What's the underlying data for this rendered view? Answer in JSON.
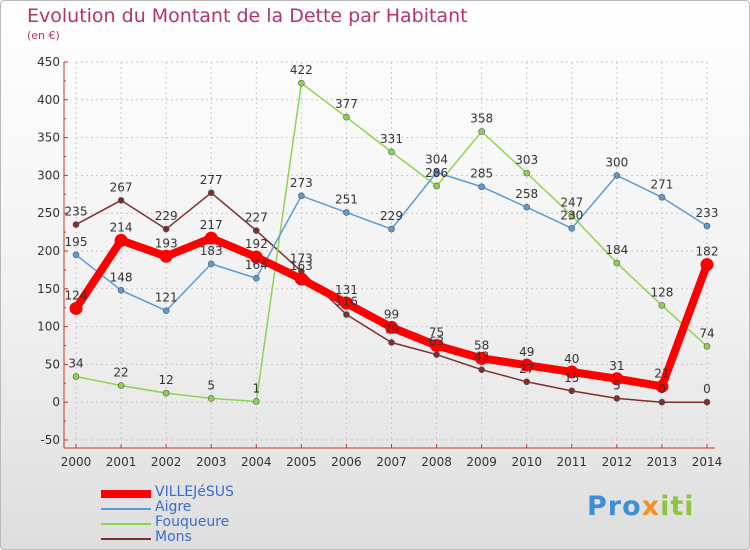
{
  "header": {
    "title": "Evolution du Montant de la Dette par Habitant",
    "unit": "(en €)"
  },
  "brand": {
    "logo_text": "Proxiti"
  },
  "chart_data": {
    "type": "line",
    "title": "Evolution du Montant de la Dette par Habitant",
    "ylabel": "(en €)",
    "xlabel": "",
    "x": [
      "2000",
      "2001",
      "2002",
      "2003",
      "2004",
      "2005",
      "2006",
      "2007",
      "2008",
      "2009",
      "2010",
      "2011",
      "2012",
      "2013",
      "2014"
    ],
    "ylim": [
      -50,
      450
    ],
    "yticks": [
      -50,
      0,
      50,
      100,
      150,
      200,
      250,
      300,
      350,
      400,
      450
    ],
    "grid": true,
    "legend": "bottom-left",
    "series": [
      {
        "name": "VILLEJéSUS",
        "color": "#ff0000",
        "values": [
          124,
          214,
          193,
          217,
          192,
          163,
          131,
          99,
          75,
          58,
          49,
          40,
          31,
          21,
          182
        ]
      },
      {
        "name": "Aigre",
        "color": "#5b9bd5",
        "values": [
          195,
          148,
          121,
          183,
          164,
          273,
          251,
          229,
          304,
          285,
          258,
          230,
          300,
          271,
          233
        ]
      },
      {
        "name": "Fouqueure",
        "color": "#8ed34f",
        "values": [
          34,
          22,
          12,
          5,
          1,
          422,
          377,
          331,
          286,
          358,
          303,
          247,
          184,
          128,
          74
        ]
      },
      {
        "name": "Mons",
        "color": "#7d2e2e",
        "values": [
          235,
          267,
          229,
          277,
          227,
          173,
          116,
          79,
          63,
          43,
          27,
          15,
          5,
          0,
          0
        ]
      }
    ]
  }
}
